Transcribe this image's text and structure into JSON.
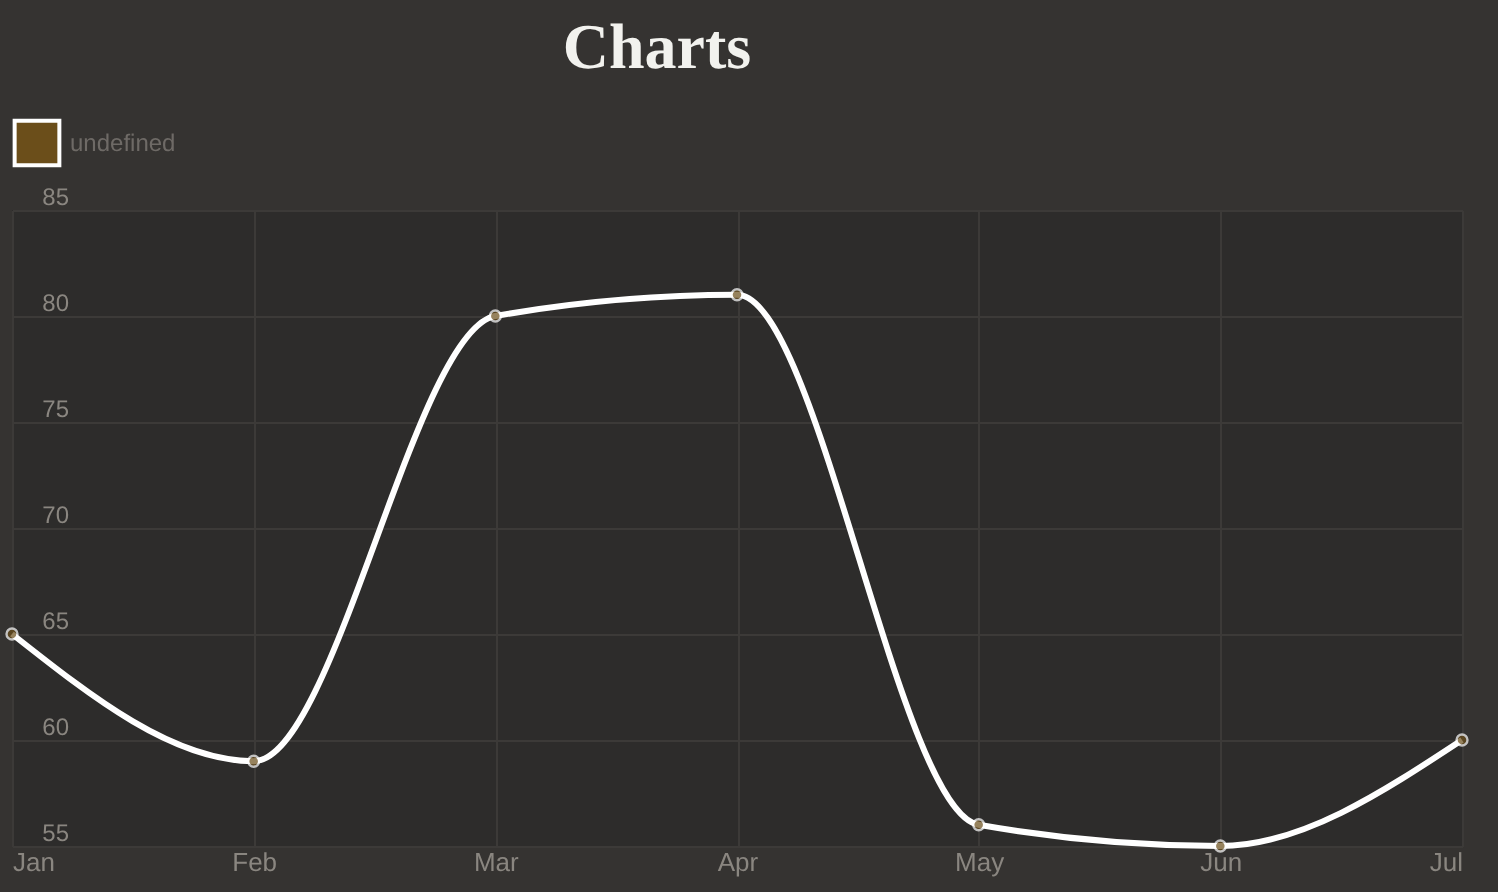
{
  "chart_data": {
    "type": "line",
    "title": "Charts",
    "categories": [
      "Jan",
      "Feb",
      "Mar",
      "Apr",
      "May",
      "Jun",
      "Jul"
    ],
    "series": [
      {
        "name": "undefined",
        "color": "#ffffff",
        "values": [
          65,
          59,
          80,
          81,
          56,
          55,
          60
        ]
      }
    ],
    "ylim": [
      55,
      85
    ],
    "yticks": [
      55,
      60,
      65,
      70,
      75,
      80,
      85
    ],
    "grid": true,
    "legend": "top",
    "marker": "circle",
    "line_style": "solid"
  }
}
